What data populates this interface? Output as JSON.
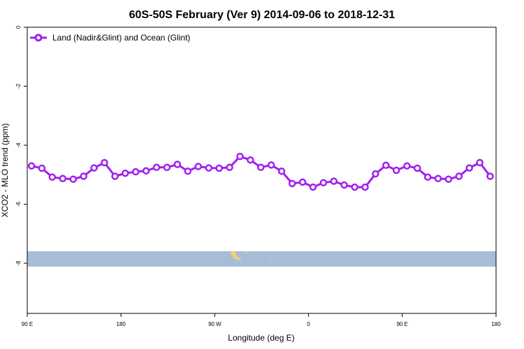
{
  "chart_data": {
    "type": "line",
    "title": "60S-50S February (Ver 9)   2014-09-06 to 2018-12-31",
    "xlabel": "Longitude (deg E)",
    "ylabel": "XCO2 - MLO trend (ppm)",
    "xlim": [
      90,
      540
    ],
    "ylim": [
      -9.7,
      0
    ],
    "x_ticks": [
      {
        "value": 90,
        "label": "90 E"
      },
      {
        "value": 180,
        "label": "180"
      },
      {
        "value": 270,
        "label": "90 W"
      },
      {
        "value": 360,
        "label": "0"
      },
      {
        "value": 450,
        "label": "90 E"
      },
      {
        "value": 540,
        "label": "180"
      }
    ],
    "y_ticks": [
      {
        "value": 0,
        "label": "0"
      },
      {
        "value": -2,
        "label": "-2"
      },
      {
        "value": -4,
        "label": "-4"
      },
      {
        "value": -6,
        "label": "-6"
      },
      {
        "value": -8,
        "label": "-8"
      }
    ],
    "legend_position": "top-left",
    "grid": false,
    "series": [
      {
        "name": "Land (Nadir&Glint) and Ocean (Glint)",
        "color": "#a020f0",
        "x": [
          94.1,
          104.0,
          114.0,
          124.1,
          134.1,
          144.1,
          154.1,
          164.1,
          174.2,
          184.1,
          194.1,
          204.1,
          214.1,
          224.1,
          234.1,
          244.1,
          254.2,
          264.2,
          274.2,
          284.2,
          294.2,
          304.2,
          314.2,
          324.2,
          334.2,
          344.3,
          354.3,
          364.3,
          374.3,
          384.3,
          394.3,
          404.3,
          414.3,
          424.3,
          434.3,
          444.3,
          454.4,
          464.4,
          474.4,
          484.4,
          494.4,
          504.4,
          514.4,
          524.4,
          534.4
        ],
        "values": [
          -4.7,
          -4.78,
          -5.08,
          -5.13,
          -5.15,
          -5.05,
          -4.77,
          -4.59,
          -5.05,
          -4.95,
          -4.9,
          -4.87,
          -4.75,
          -4.75,
          -4.65,
          -4.88,
          -4.72,
          -4.77,
          -4.78,
          -4.75,
          -4.38,
          -4.5,
          -4.75,
          -4.67,
          -4.88,
          -5.3,
          -5.25,
          -5.42,
          -5.27,
          -5.22,
          -5.35,
          -5.42,
          -5.42,
          -4.97,
          -4.68,
          -4.85,
          -4.7,
          -4.78,
          -5.08,
          -5.13,
          -5.15,
          -5.05,
          -4.77,
          -4.59,
          -5.05
        ]
      }
    ]
  },
  "map_strip": {
    "ocean_color": "#a8bcd8",
    "land_color": "#f4cf6b",
    "lat_range": [
      -60,
      -50
    ]
  }
}
